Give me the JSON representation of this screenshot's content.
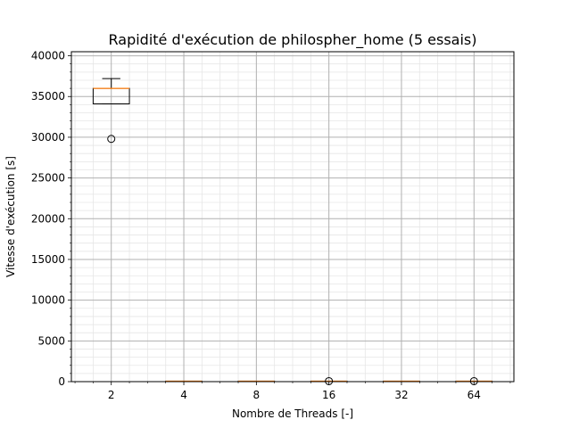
{
  "chart_data": {
    "type": "box",
    "title": "Rapidité d'exécution de philospher_home (5 essais)",
    "xlabel": "Nombre de Threads [-]",
    "ylabel": "Vitesse d'exécution [s]",
    "categories": [
      "2",
      "4",
      "8",
      "16",
      "32",
      "64"
    ],
    "ylim": [
      0,
      40500
    ],
    "yticks": [
      0,
      5000,
      10000,
      15000,
      20000,
      25000,
      30000,
      35000,
      40000
    ],
    "grid": true,
    "boxes": [
      {
        "category": "2",
        "whislo": 34100,
        "q1": 34100,
        "med": 36000,
        "q3": 36000,
        "whishi": 37200,
        "fliers": [
          29800
        ]
      },
      {
        "category": "4",
        "whislo": 60,
        "q1": 60,
        "med": 60,
        "q3": 60,
        "whishi": 60,
        "fliers": []
      },
      {
        "category": "8",
        "whislo": 60,
        "q1": 60,
        "med": 60,
        "q3": 60,
        "whishi": 60,
        "fliers": []
      },
      {
        "category": "16",
        "whislo": 60,
        "q1": 60,
        "med": 60,
        "q3": 60,
        "whishi": 60,
        "fliers": [
          60
        ]
      },
      {
        "category": "32",
        "whislo": 60,
        "q1": 60,
        "med": 60,
        "q3": 60,
        "whishi": 60,
        "fliers": []
      },
      {
        "category": "64",
        "whislo": 60,
        "q1": 60,
        "med": 60,
        "q3": 60,
        "whishi": 60,
        "fliers": [
          60
        ]
      }
    ],
    "colors": {
      "box": "#000000",
      "median": "#ff7f0e",
      "grid_major": "#b0b0b0",
      "grid_minor": "#e6e6e6"
    }
  }
}
